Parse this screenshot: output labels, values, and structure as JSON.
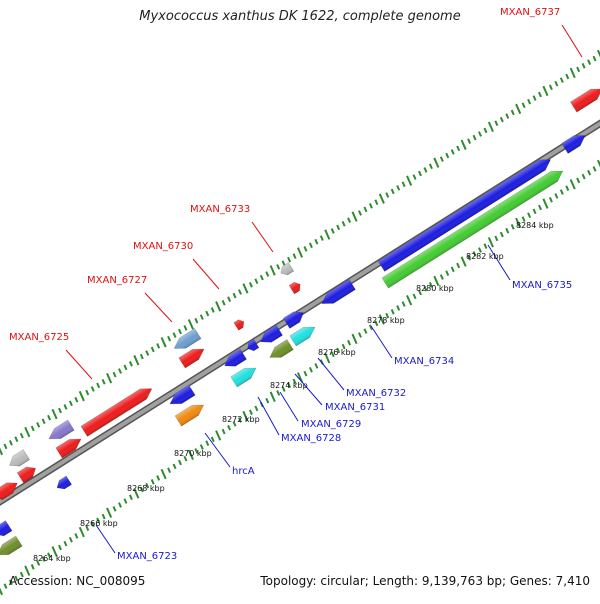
{
  "title": "Myxococcus xanthus DK 1622, complete genome",
  "footer": {
    "accession": "Accession: NC_008095",
    "summary": "Topology: circular; Length: 9,139,763 bp; Genes: 7,410"
  },
  "colors": {
    "backbone": "#8a8a8a",
    "tick": "#2e8b2e",
    "forward_label": "#e01010",
    "reverse_label": "#1a1ad0",
    "gene_red": "#ee1c1c",
    "gene_blue": "#1d1de0",
    "gene_green": "#44cc33",
    "gene_cyan": "#22e0e0",
    "gene_orange": "#f08a10",
    "gene_gray": "#bbbbbb",
    "gene_purple": "#8877cc",
    "gene_olive": "#6f8f2a",
    "gene_steel": "#6f9fcf"
  },
  "kbp_labels": [
    "8264 kbp",
    "8266 kbp",
    "8268 kbp",
    "8270 kbp",
    "8272 kbp",
    "8274 kbp",
    "8276 kbp",
    "8278 kbp",
    "8280 kbp",
    "8282 kbp",
    "8284 kbp"
  ],
  "forward_gene_labels": [
    "MXAN_6737",
    "MXAN_6733",
    "MXAN_6730",
    "MXAN_6727",
    "MXAN_6725"
  ],
  "reverse_gene_labels": [
    "MXAN_6735",
    "MXAN_6734",
    "MXAN_6732",
    "MXAN_6731",
    "MXAN_6729",
    "MXAN_6728",
    "hrcA",
    "MXAN_6723"
  ]
}
